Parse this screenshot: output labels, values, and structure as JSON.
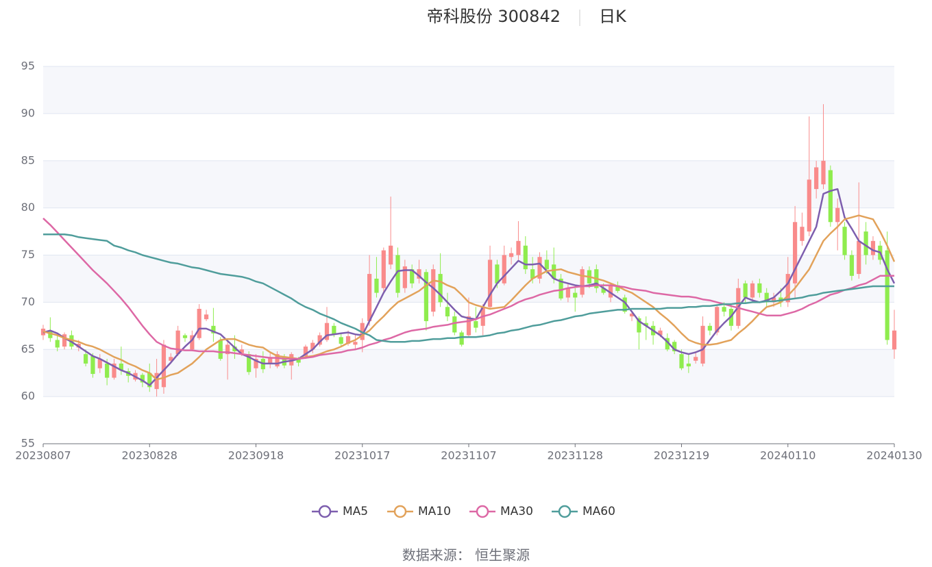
{
  "chart_data": {
    "type": "candlestick",
    "title": "帝科股份 300842",
    "subtitle": "日K",
    "source": "数据来源： 恒生聚源",
    "categories": [
      "20230807",
      null,
      null,
      null,
      null,
      null,
      null,
      null,
      null,
      null,
      null,
      null,
      null,
      null,
      null,
      "20230828",
      null,
      null,
      null,
      null,
      null,
      null,
      null,
      null,
      null,
      null,
      null,
      null,
      null,
      null,
      "20230918",
      null,
      null,
      null,
      null,
      null,
      null,
      null,
      null,
      null,
      null,
      null,
      null,
      null,
      null,
      "20231017",
      null,
      null,
      null,
      null,
      null,
      null,
      null,
      null,
      null,
      null,
      null,
      null,
      null,
      null,
      "20231107",
      null,
      null,
      null,
      null,
      null,
      null,
      null,
      null,
      null,
      null,
      null,
      null,
      null,
      null,
      "20231128",
      null,
      null,
      null,
      null,
      null,
      null,
      null,
      null,
      null,
      null,
      null,
      null,
      null,
      null,
      "20231219",
      null,
      null,
      null,
      null,
      null,
      null,
      null,
      null,
      null,
      null,
      null,
      null,
      null,
      null,
      "20240110",
      null,
      null,
      null,
      null,
      null,
      null,
      null,
      null,
      null,
      null,
      null,
      null,
      null,
      null,
      "20240130"
    ],
    "up_color": "#f98b8b",
    "down_color": "#8fec4e",
    "candles": [
      [
        66.5,
        67.2,
        66,
        67.6
      ],
      [
        67,
        66.2,
        65.8,
        68.4
      ],
      [
        66,
        65.2,
        64.8,
        66.5
      ],
      [
        65.3,
        66.6,
        65,
        66.8
      ],
      [
        66.5,
        65.3,
        65,
        67
      ],
      [
        65.2,
        65.6,
        64.8,
        66
      ],
      [
        64.5,
        63.5,
        63.2,
        65
      ],
      [
        64.3,
        62.4,
        62,
        64.6
      ],
      [
        63,
        64,
        62.5,
        64.5
      ],
      [
        63.5,
        62,
        61.2,
        64
      ],
      [
        62,
        63.5,
        61.8,
        64
      ],
      [
        63.5,
        62.8,
        62.3,
        65.3
      ],
      [
        62.7,
        62.2,
        61.5,
        63
      ],
      [
        61.8,
        62.5,
        61.6,
        62.8
      ],
      [
        62.3,
        61.5,
        61,
        62.5
      ],
      [
        62.5,
        61,
        60.5,
        63.5
      ],
      [
        60.8,
        62.5,
        60,
        64
      ],
      [
        61,
        65.5,
        60.3,
        66
      ],
      [
        63.8,
        64.2,
        63.5,
        64.6
      ],
      [
        64.5,
        67,
        64.3,
        67.5
      ],
      [
        66.5,
        66.2,
        65.8,
        66.7
      ],
      [
        65,
        66.5,
        64.8,
        67
      ],
      [
        66.2,
        69.3,
        66,
        69.8
      ],
      [
        68.2,
        68.7,
        68,
        69.2
      ],
      [
        67.5,
        66.7,
        65.8,
        69.4
      ],
      [
        66,
        64,
        63.8,
        66.3
      ],
      [
        64.5,
        65.5,
        61.8,
        65.8
      ],
      [
        65.3,
        64.8,
        64,
        66.5
      ],
      [
        64.6,
        65,
        64.3,
        65.5
      ],
      [
        64.5,
        62.6,
        62.3,
        64.8
      ],
      [
        63,
        64,
        62,
        64.5
      ],
      [
        64,
        62.9,
        62.5,
        64.8
      ],
      [
        63.5,
        64.2,
        63,
        64.6
      ],
      [
        63.2,
        64.5,
        63,
        64.8
      ],
      [
        64.2,
        63.3,
        63,
        64.5
      ],
      [
        63.3,
        64.5,
        61.8,
        64.7
      ],
      [
        64,
        63.6,
        63.2,
        64.2
      ],
      [
        64.3,
        65.3,
        64,
        65.5
      ],
      [
        65,
        65.7,
        64.6,
        66
      ],
      [
        65.5,
        66.5,
        65.3,
        66.8
      ],
      [
        66,
        67.8,
        65.8,
        69.5
      ],
      [
        67.5,
        66.6,
        66.3,
        67.8
      ],
      [
        66.3,
        65.6,
        65.3,
        66.8
      ],
      [
        65.6,
        66.4,
        65.4,
        67
      ],
      [
        65.5,
        65.8,
        65,
        66.5
      ],
      [
        66,
        67.8,
        64.7,
        68.3
      ],
      [
        68,
        73,
        67.5,
        75
      ],
      [
        72.5,
        71,
        70.5,
        74.8
      ],
      [
        71.5,
        75.5,
        71,
        75.8
      ],
      [
        74,
        76,
        73.5,
        81.2
      ],
      [
        75,
        71,
        70.5,
        75.8
      ],
      [
        71.5,
        73.8,
        71,
        74.5
      ],
      [
        73.5,
        72,
        71.5,
        74
      ],
      [
        72.5,
        73.5,
        72,
        74.5
      ],
      [
        73.2,
        68,
        67,
        73.5
      ],
      [
        69,
        73.5,
        68.5,
        74
      ],
      [
        73,
        70,
        69.5,
        75.2
      ],
      [
        69.5,
        68.5,
        68,
        71
      ],
      [
        68.5,
        66.8,
        66.5,
        69
      ],
      [
        66.8,
        65.5,
        65.3,
        67
      ],
      [
        66.5,
        68.5,
        66.3,
        70.5
      ],
      [
        68,
        67.3,
        66.8,
        69.5
      ],
      [
        67.5,
        69.5,
        66.5,
        69.8
      ],
      [
        69.5,
        74.5,
        69.3,
        76
      ],
      [
        74,
        72,
        71.5,
        74.5
      ],
      [
        72,
        75,
        71.8,
        76
      ],
      [
        74.8,
        75.2,
        74,
        75.8
      ],
      [
        75,
        76.5,
        74.5,
        78.6
      ],
      [
        76,
        73.5,
        73,
        77
      ],
      [
        73.5,
        72.5,
        72,
        74.8
      ],
      [
        72.5,
        74.8,
        72,
        75.3
      ],
      [
        74.5,
        73.5,
        73,
        75.5
      ],
      [
        74,
        72.5,
        72,
        75.8
      ],
      [
        72.5,
        70.4,
        70.2,
        73
      ],
      [
        70.5,
        71.5,
        70,
        72
      ],
      [
        71,
        70.5,
        69,
        71.5
      ],
      [
        70.8,
        73.5,
        70.5,
        73.8
      ],
      [
        73.4,
        72,
        71.5,
        73.8
      ],
      [
        73.5,
        71.5,
        71,
        74
      ],
      [
        71.5,
        71,
        70.8,
        72
      ],
      [
        70.5,
        71.8,
        70,
        72
      ],
      [
        71.8,
        71.2,
        71,
        72.2
      ],
      [
        70.5,
        69,
        68.8,
        70.8
      ],
      [
        68.5,
        68.8,
        68,
        69
      ],
      [
        68.3,
        66.8,
        65,
        68.5
      ],
      [
        67.8,
        67.5,
        66,
        68.5
      ],
      [
        67.5,
        66.5,
        65.5,
        68
      ],
      [
        66.5,
        67,
        66.3,
        67.3
      ],
      [
        66.2,
        65,
        64.8,
        66.7
      ],
      [
        65.8,
        64.8,
        64.5,
        66
      ],
      [
        64.5,
        63,
        62.8,
        65
      ],
      [
        63.5,
        63.2,
        62.5,
        64.5
      ],
      [
        63.8,
        64.2,
        63.5,
        64.8
      ],
      [
        63.5,
        67.5,
        63.2,
        68.5
      ],
      [
        67.5,
        67,
        66.5,
        67.8
      ],
      [
        66.8,
        69.5,
        66.5,
        69.7
      ],
      [
        69.5,
        69,
        68.5,
        70
      ],
      [
        69.3,
        67.5,
        67,
        69.8
      ],
      [
        67.5,
        71.5,
        67.2,
        72.5
      ],
      [
        72,
        70.5,
        70,
        72.3
      ],
      [
        70.5,
        72,
        70,
        72.3
      ],
      [
        72,
        71,
        70.5,
        72.5
      ],
      [
        71,
        70,
        69.5,
        71.5
      ],
      [
        70,
        70.5,
        69.5,
        71
      ],
      [
        70.5,
        70,
        69.5,
        71.5
      ],
      [
        70,
        73,
        69.5,
        74.8
      ],
      [
        72,
        78.5,
        70.5,
        80.2
      ],
      [
        76.5,
        78,
        76,
        79.5
      ],
      [
        77.5,
        83,
        77,
        89.7
      ],
      [
        82,
        84.3,
        81,
        85
      ],
      [
        82.5,
        85,
        82,
        91
      ],
      [
        84,
        78.5,
        78,
        84.5
      ],
      [
        78.5,
        80,
        75.5,
        81
      ],
      [
        78,
        75,
        74.5,
        78.5
      ],
      [
        75,
        72.8,
        72.3,
        75.5
      ],
      [
        73,
        76.5,
        72.5,
        82.7
      ],
      [
        77.5,
        75,
        74,
        78.5
      ],
      [
        75,
        76.5,
        74.5,
        77
      ],
      [
        76,
        74.5,
        74,
        76.5
      ],
      [
        75.5,
        66,
        65.5,
        77.5
      ],
      [
        65,
        67,
        64,
        69.2
      ]
    ],
    "series": [
      {
        "name": "MA5",
        "color": "#7d5eae",
        "values": [
          66.8,
          67,
          66.7,
          66.2,
          65.8,
          65.3,
          64.8,
          64.3,
          64,
          63.6,
          63.2,
          62.8,
          62.5,
          62.1,
          61.7,
          61.2,
          62,
          62.8,
          63.6,
          64.5,
          65.3,
          66,
          67.2,
          67.2,
          66.9,
          66.6,
          65.9,
          65.2,
          64.5,
          64.2,
          63.8,
          63.5,
          63.5,
          63.5,
          63.7,
          63.8,
          64,
          64.5,
          65,
          65.8,
          66.5,
          66.6,
          66.7,
          66.8,
          66.6,
          66.5,
          68,
          69.5,
          71,
          72.2,
          73.3,
          73.4,
          73.4,
          72.8,
          72.1,
          71.5,
          70.8,
          70,
          69.2,
          68.5,
          68.3,
          68.2,
          69.5,
          70.8,
          72,
          72.8,
          73.6,
          74.4,
          74,
          74,
          74.1,
          73.3,
          72.5,
          72.2,
          72,
          71.8,
          71.7,
          71.8,
          72,
          71.5,
          71,
          70.5,
          70,
          69,
          68,
          67.5,
          67,
          66.5,
          65.8,
          65,
          64.7,
          64.5,
          64.7,
          65,
          66,
          67,
          67.8,
          68.5,
          69.5,
          70.5,
          70.2,
          70,
          70.2,
          70.5,
          71.2,
          72,
          73.5,
          75,
          76.5,
          78,
          81.5,
          81.8,
          82,
          79,
          77.8,
          76.5,
          76,
          75.5,
          75.3,
          73.5,
          72
        ]
      },
      {
        "name": "MA10",
        "color": "#e2a25a",
        "values": [
          66.9,
          66.7,
          66.5,
          66.2,
          66,
          65.8,
          65.5,
          65.3,
          65,
          64.6,
          64.2,
          63.9,
          63.5,
          63.2,
          62.8,
          62.5,
          61.8,
          62,
          62.3,
          62.5,
          63,
          63.5,
          64.2,
          65,
          65.5,
          66,
          66.1,
          66.1,
          65.8,
          65.5,
          65.3,
          65.2,
          64.7,
          64.3,
          64.2,
          64.1,
          64,
          64.2,
          64.3,
          64.5,
          64.8,
          65,
          65.3,
          65.7,
          66,
          66.5,
          67,
          67.8,
          68.5,
          69.3,
          70,
          70.4,
          70.8,
          71.2,
          71.8,
          72.3,
          72.2,
          71.8,
          71.5,
          70.8,
          70,
          69.7,
          69.5,
          69.3,
          69.4,
          69.5,
          70.2,
          71,
          71.8,
          72.5,
          72.9,
          73.3,
          73.4,
          73.5,
          73.2,
          73,
          72.8,
          72.7,
          72.5,
          72.3,
          72,
          71.7,
          71.3,
          71,
          70.5,
          70,
          69.5,
          68.8,
          68.2,
          67.5,
          66.7,
          66,
          65.7,
          65.5,
          65.5,
          65.6,
          65.8,
          66,
          66.7,
          67.3,
          68,
          68.8,
          69.5,
          69.7,
          70,
          70.7,
          71.5,
          72.5,
          73.5,
          75,
          76.5,
          77.3,
          78,
          78.8,
          79,
          79.2,
          79,
          78.8,
          77.5,
          76,
          74.3
        ]
      },
      {
        "name": "MA30",
        "color": "#dd68a5",
        "values": [
          78.9,
          78.2,
          77.4,
          76.6,
          75.8,
          75,
          74.2,
          73.4,
          72.7,
          72,
          71.2,
          70.4,
          69.5,
          68.5,
          67.5,
          66.6,
          65.8,
          65.4,
          65.1,
          65,
          64.9,
          64.9,
          64.8,
          64.8,
          64.8,
          64.7,
          64.7,
          64.6,
          64.5,
          64.4,
          64.3,
          64.2,
          64.1,
          64.1,
          64,
          64,
          64,
          64.1,
          64.2,
          64.4,
          64.5,
          64.6,
          64.7,
          64.9,
          65,
          65.2,
          65.5,
          65.7,
          66,
          66.2,
          66.5,
          66.8,
          67,
          67.1,
          67.2,
          67.4,
          67.5,
          67.6,
          67.8,
          67.9,
          68,
          68.2,
          68.5,
          68.7,
          69,
          69.3,
          69.6,
          70,
          70.3,
          70.5,
          70.8,
          71,
          71.2,
          71.3,
          71.5,
          71.6,
          71.7,
          71.7,
          71.8,
          71.8,
          71.8,
          71.7,
          71.6,
          71.4,
          71.3,
          71.2,
          71,
          70.9,
          70.8,
          70.7,
          70.6,
          70.6,
          70.5,
          70.3,
          70.2,
          70,
          69.8,
          69.6,
          69.4,
          69.2,
          69,
          68.8,
          68.6,
          68.6,
          68.6,
          68.8,
          69,
          69.3,
          69.7,
          70,
          70.4,
          70.8,
          71,
          71.3,
          71.5,
          71.8,
          72,
          72.4,
          72.8,
          72.8,
          72.8
        ]
      },
      {
        "name": "MA60",
        "color": "#4f9d9b",
        "values": [
          77.2,
          77.2,
          77.2,
          77.2,
          77.1,
          76.9,
          76.8,
          76.7,
          76.6,
          76.5,
          76,
          75.8,
          75.5,
          75.3,
          75,
          74.8,
          74.6,
          74.4,
          74.2,
          74.1,
          73.9,
          73.7,
          73.6,
          73.4,
          73.2,
          73,
          72.9,
          72.8,
          72.7,
          72.5,
          72.2,
          72,
          71.6,
          71.2,
          70.8,
          70.4,
          69.9,
          69.5,
          69.2,
          68.8,
          68.5,
          68.2,
          67.8,
          67.5,
          67.2,
          66.8,
          66.5,
          66,
          65.9,
          65.8,
          65.8,
          65.8,
          65.9,
          65.9,
          66,
          66.1,
          66.1,
          66.2,
          66.2,
          66.3,
          66.3,
          66.3,
          66.4,
          66.5,
          66.7,
          66.8,
          67,
          67.1,
          67.3,
          67.5,
          67.6,
          67.8,
          68,
          68.1,
          68.3,
          68.5,
          68.6,
          68.8,
          68.9,
          69,
          69.1,
          69.2,
          69.2,
          69.3,
          69.3,
          69.3,
          69.3,
          69.3,
          69.4,
          69.4,
          69.4,
          69.5,
          69.5,
          69.6,
          69.6,
          69.7,
          69.8,
          69.8,
          69.9,
          69.9,
          70,
          70,
          70.1,
          70.1,
          70.2,
          70.3,
          70.4,
          70.5,
          70.7,
          70.8,
          71,
          71.1,
          71.2,
          71.3,
          71.4,
          71.5,
          71.6,
          71.7,
          71.7,
          71.7,
          71.7
        ]
      }
    ],
    "ylim": [
      55,
      95
    ],
    "yticks": [
      55,
      60,
      65,
      70,
      75,
      80,
      85,
      90,
      95
    ],
    "grid": true
  }
}
